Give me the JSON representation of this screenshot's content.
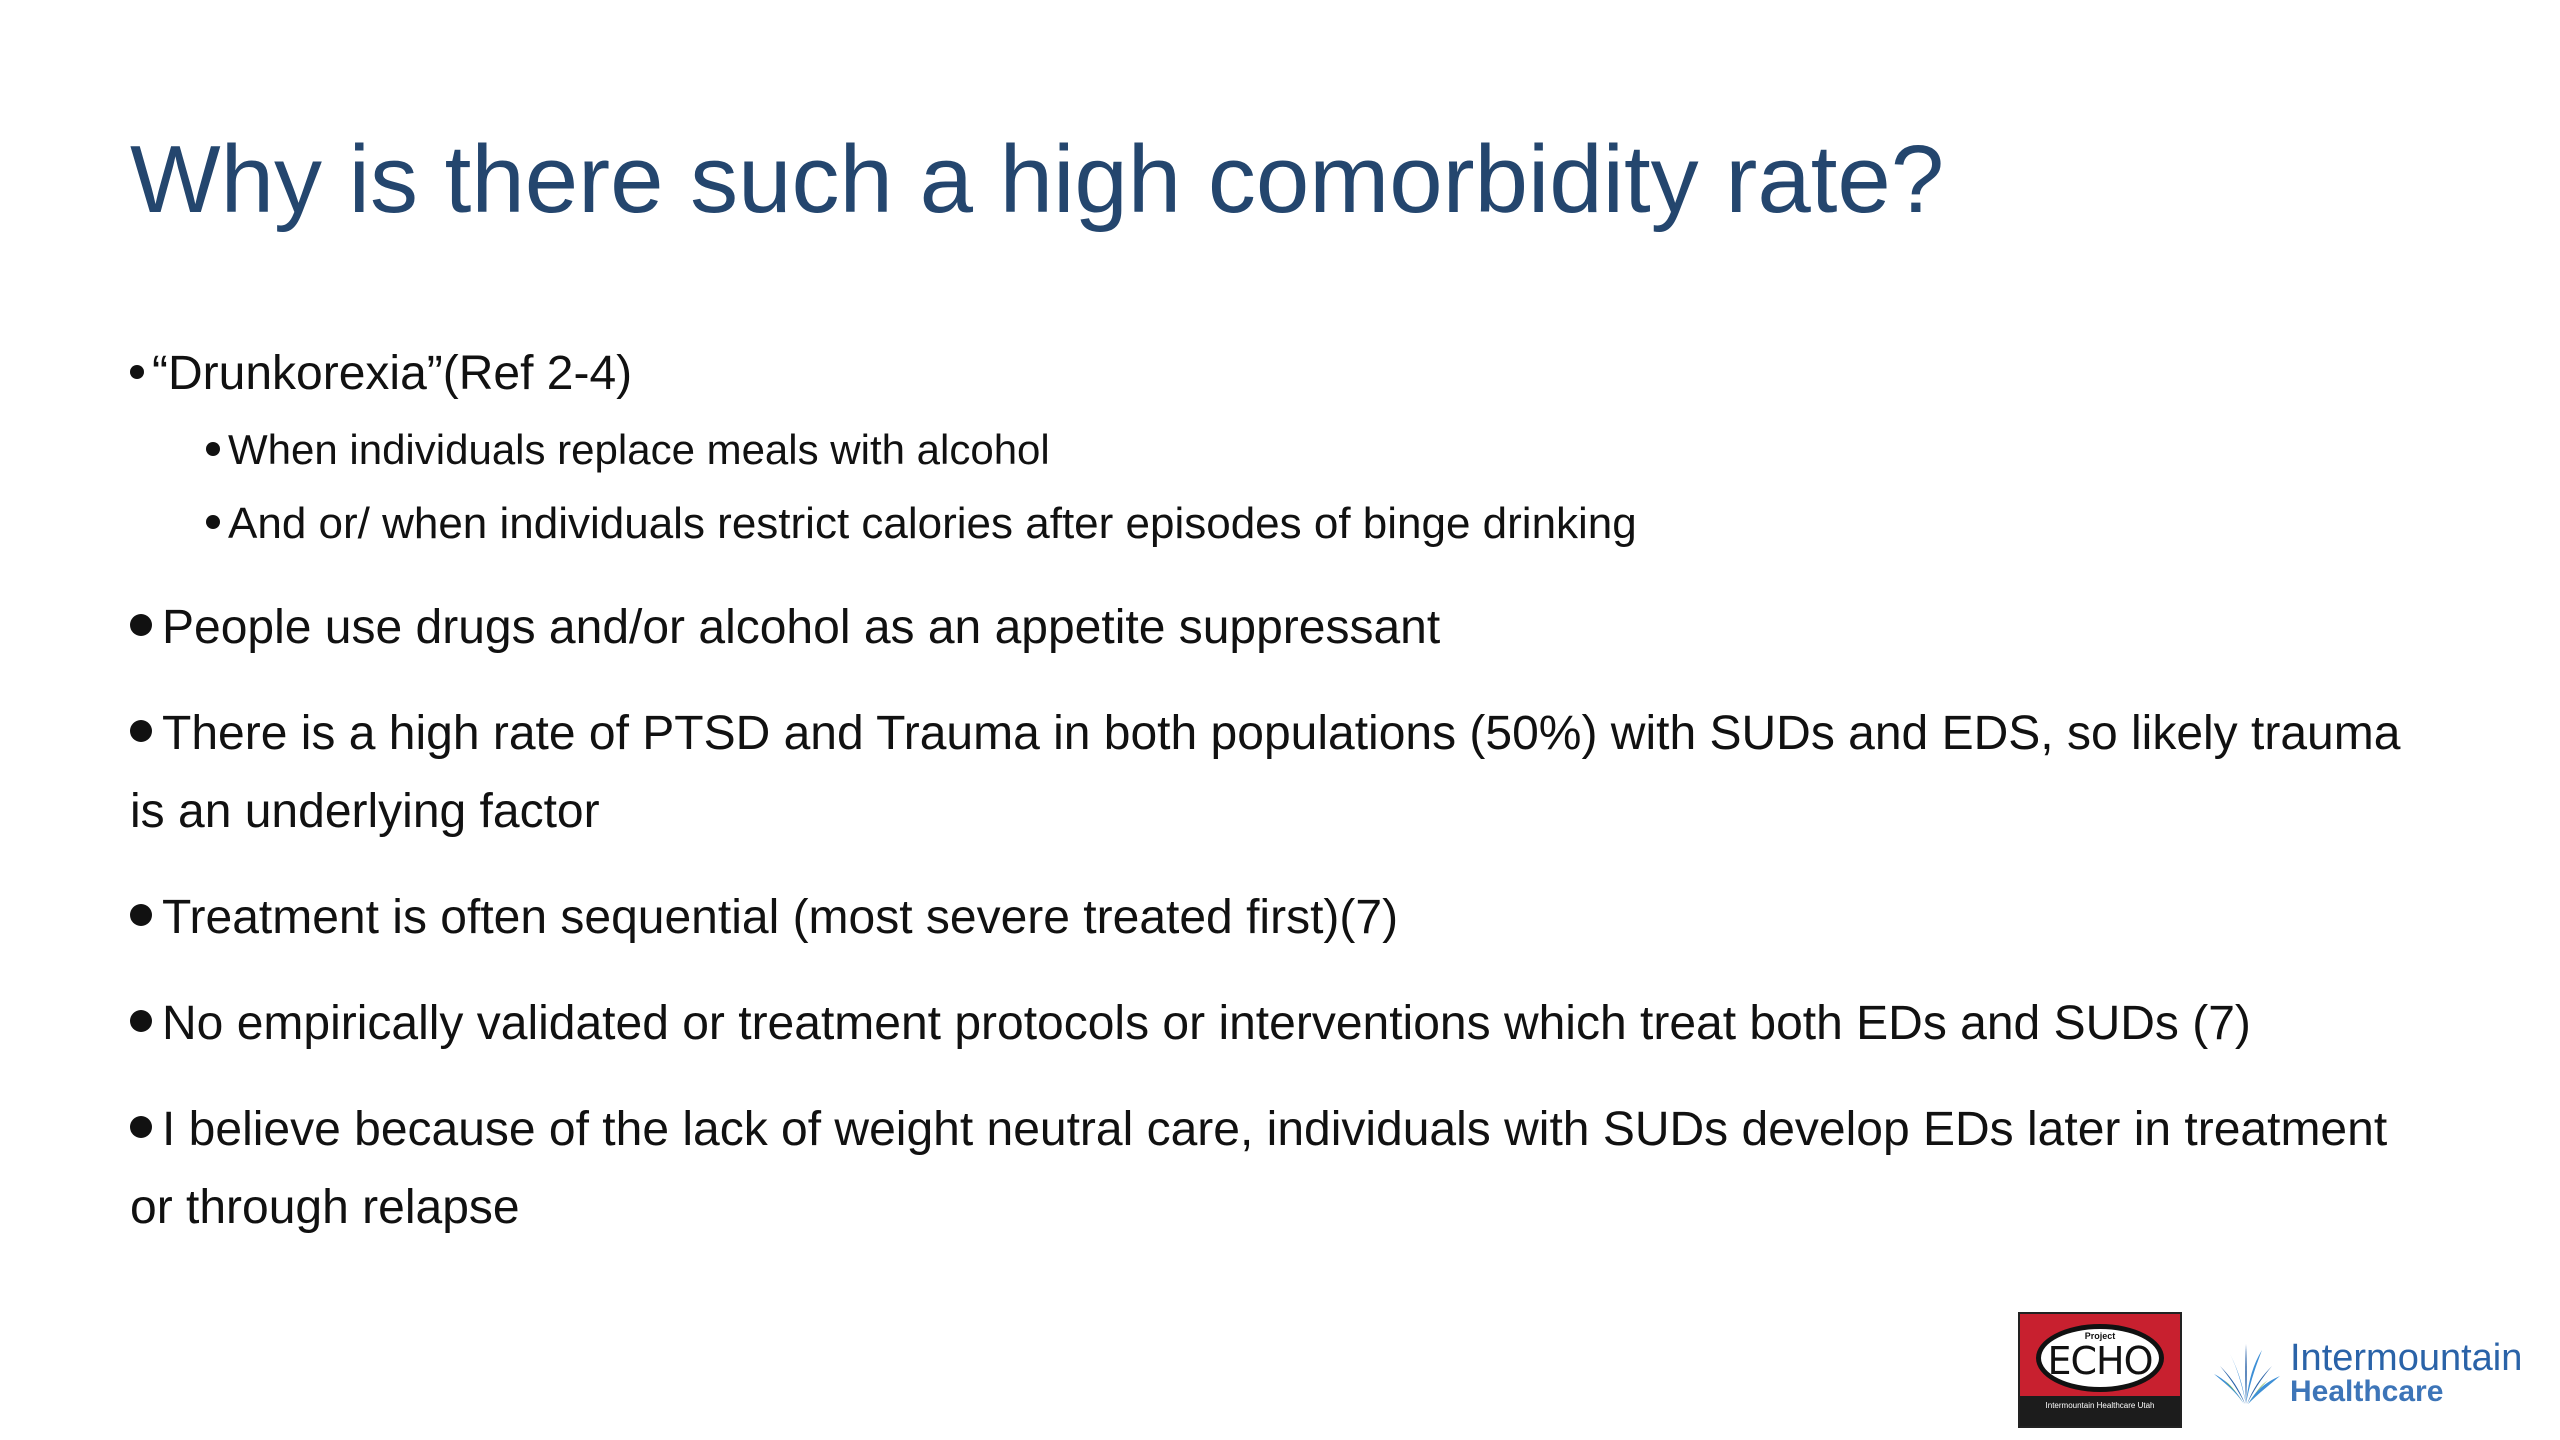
{
  "title": "Why is there such a high comorbidity rate?",
  "bullets": {
    "drunkorexia": "“Drunkorexia”(Ref 2-4)",
    "sub1": "When individuals replace meals with alcohol",
    "sub2": "And or/ when individuals restrict calories after episodes of binge drinking",
    "b2": "People use drugs and/or alcohol as an appetite suppressant",
    "b3": "There is a high rate of PTSD and Trauma in both populations (50%) with SUDs and EDS, so likely trauma is an underlying factor",
    "b4": "Treatment is often sequential (most severe treated first)(7)",
    "b5": "No empirically validated or treatment protocols or interventions which treat both EDs and SUDs (7)",
    "b6": "I believe because of the lack of weight neutral care, individuals with SUDs develop EDs later in treatment or through relapse"
  },
  "logos": {
    "echo_project": "Project",
    "echo_name": "ECHO",
    "echo_strip": "Intermountain Healthcare Utah",
    "ih_name": "Intermountain",
    "ih_sub": "Healthcare"
  },
  "colors": {
    "title": "#24466e",
    "text": "#111111",
    "echo_red": "#c8202f",
    "ih_blue": "#2a63a8"
  }
}
